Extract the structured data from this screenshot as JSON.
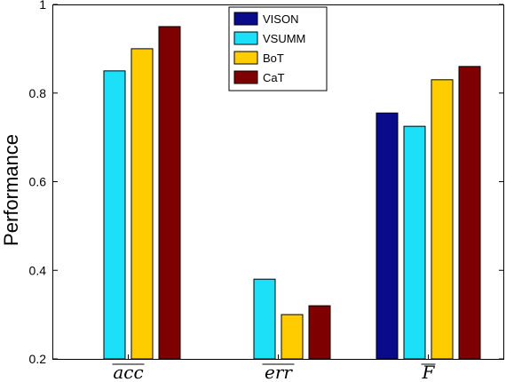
{
  "chart_data": {
    "type": "bar",
    "ylabel": "Performance",
    "xlabel": "",
    "ylim": [
      0.2,
      1
    ],
    "yticks": [
      "0.2",
      "0.4",
      "0.6",
      "0.8",
      "1"
    ],
    "categories": [
      "acc",
      "err",
      "F"
    ],
    "categories_overlined": true,
    "series": [
      {
        "name": "VISON",
        "color": "#0a0a8c",
        "values": [
          null,
          null,
          0.755
        ]
      },
      {
        "name": "VSUMM",
        "color": "#1ce0f8",
        "values": [
          0.85,
          0.38,
          0.725
        ]
      },
      {
        "name": "BoT",
        "color": "#ffcc00",
        "values": [
          0.9,
          0.3,
          0.83
        ]
      },
      {
        "name": "CaT",
        "color": "#7f0000",
        "values": [
          0.95,
          0.32,
          0.86
        ]
      }
    ],
    "legend_position": "top-center",
    "grid": false
  }
}
